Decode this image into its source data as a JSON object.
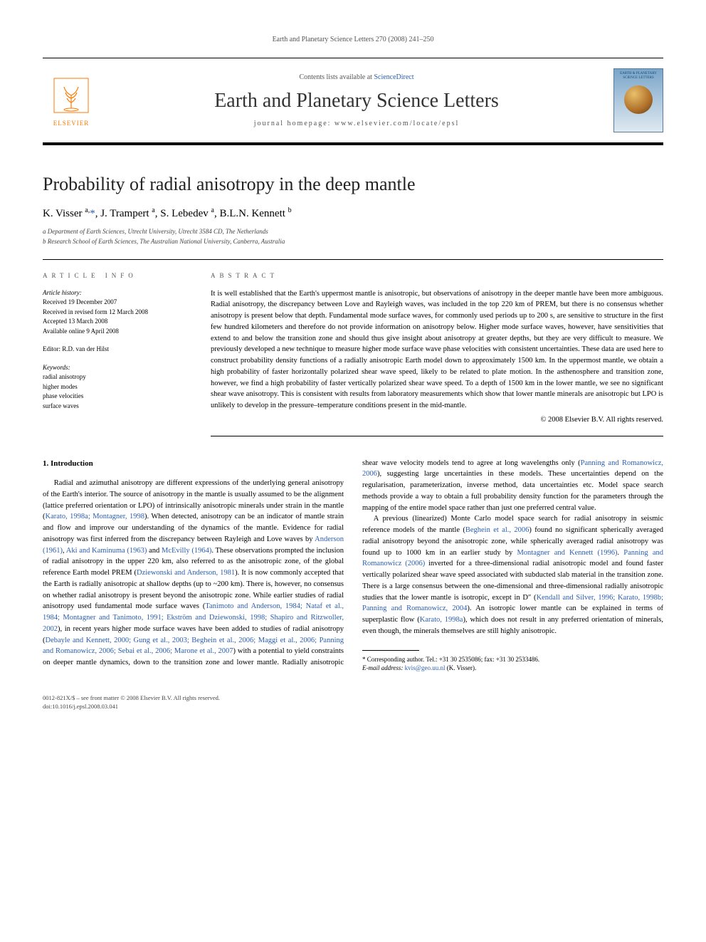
{
  "journal_ref": "Earth and Planetary Science Letters 270 (2008) 241–250",
  "header": {
    "contents_prefix": "Contents lists available at ",
    "contents_link": "ScienceDirect",
    "journal_title": "Earth and Planetary Science Letters",
    "homepage_label": "journal homepage: www.elsevier.com/locate/epsl",
    "publisher_name": "ELSEVIER",
    "cover_text": "EARTH & PLANETARY SCIENCE LETTERS"
  },
  "article": {
    "title": "Probability of radial anisotropy in the deep mantle",
    "authors_html": "K. Visser <sup>a,</sup><a href=\"#\">*</a>, J. Trampert <sup>a</sup>, S. Lebedev <sup>a</sup>, B.L.N. Kennett <sup>b</sup>",
    "affiliations": [
      "a  Department of Earth Sciences, Utrecht University, Utrecht 3584 CD, The Netherlands",
      "b  Research School of Earth Sciences, The Australian National University, Canberra, Australia"
    ]
  },
  "info": {
    "label": "ARTICLE INFO",
    "history_heading": "Article history:",
    "history": [
      "Received 19 December 2007",
      "Received in revised form 12 March 2008",
      "Accepted 13 March 2008",
      "Available online 9 April 2008"
    ],
    "editor": "Editor: R.D. van der Hilst",
    "keywords_heading": "Keywords:",
    "keywords": [
      "radial anisotropy",
      "higher modes",
      "phase velocities",
      "surface waves"
    ]
  },
  "abstract": {
    "label": "ABSTRACT",
    "text": "It is well established that the Earth's uppermost mantle is anisotropic, but observations of anisotropy in the deeper mantle have been more ambiguous. Radial anisotropy, the discrepancy between Love and Rayleigh waves, was included in the top 220 km of PREM, but there is no consensus whether anisotropy is present below that depth. Fundamental mode surface waves, for commonly used periods up to 200 s, are sensitive to structure in the first few hundred kilometers and therefore do not provide information on anisotropy below. Higher mode surface waves, however, have sensitivities that extend to and below the transition zone and should thus give insight about anisotropy at greater depths, but they are very difficult to measure. We previously developed a new technique to measure higher mode surface wave phase velocities with consistent uncertainties. These data are used here to construct probability density functions of a radially anisotropic Earth model down to approximately 1500 km. In the uppermost mantle, we obtain a high probability of faster horizontally polarized shear wave speed, likely to be related to plate motion. In the asthenosphere and transition zone, however, we find a high probability of faster vertically polarized shear wave speed. To a depth of 1500 km in the lower mantle, we see no significant shear wave anisotropy. This is consistent with results from laboratory measurements which show that lower mantle minerals are anisotropic but LPO is unlikely to develop in the pressure–temperature conditions present in the mid-mantle.",
    "copyright": "© 2008 Elsevier B.V. All rights reserved."
  },
  "body": {
    "heading": "1. Introduction",
    "p1_pre": "Radial and azimuthal anisotropy are different expressions of the underlying general anisotropy of the Earth's interior. The source of anisotropy in the mantle is usually assumed to be the alignment (lattice preferred orientation or LPO) of intrinsically anisotropic minerals under strain in the mantle (",
    "cite1": "Karato, 1998a; Montagner, 1998",
    "p1_mid1": "). When detected, anisotropy can be an indicator of mantle strain and flow and improve our understanding of the dynamics of the mantle. Evidence for radial anisotropy was first inferred from the discrepancy between Rayleigh and Love waves by ",
    "cite2": "Anderson (1961)",
    "p1_mid2": ", ",
    "cite3": "Aki and Kaminuma (1963)",
    "p1_mid3": " and ",
    "cite4": "McEvilly (1964)",
    "p1_mid4": ". These observations prompted the inclusion of radial anisotropy in the upper 220 km, also referred to as the anisotropic zone, of the global reference Earth model PREM (",
    "cite5": "Dziewonski and Anderson, 1981",
    "p1_mid5": "). It is now commonly accepted that the Earth is radially anisotropic at shallow depths (up to ~200 km). There is, however, no consensus on whether radial anisotropy is present beyond the anisotropic zone. While earlier studies of radial anisotropy used fundamental mode surface waves (",
    "cite6": "Tanimoto and Anderson, 1984; Nataf et al., 1984; Montagner and Tanimoto, 1991; Ekström and Dziewonski, 1998; Shapiro and Ritzwoller, 2002",
    "p1_mid6": "), in recent years higher mode surface waves have been added to studies of radial anisotropy (",
    "cite7": "Debayle and Kennett, 2000; Gung et al., 2003; Beghein et al., 2006; Maggi et al., 2006; Panning and Romanowicz, 2006; Sebai et al., 2006; Marone et al., 2007",
    "p1_mid7": ") with a potential to yield constraints on deeper mantle dynamics, down to the transition zone and lower mantle. Radially anisotropic shear wave velocity models tend to agree at long wavelengths only (",
    "cite8": "Panning and Romanowicz, 2006",
    "p1_end": "), suggesting large uncertainties in these models. These uncertainties depend on the regularisation, parameterization, inverse method, data uncertainties etc. Model space search methods provide a way to obtain a full probability density function for the parameters through the mapping of the entire model space rather than just one preferred central value.",
    "p2_pre": "A previous (linearized) Monte Carlo model space search for radial anisotropy in seismic reference models of the mantle (",
    "cite9": "Beghein et al., 2006",
    "p2_mid1": ") found no significant spherically averaged radial anisotropy beyond the anisotropic zone, while spherically averaged radial anisotropy was found up to 1000 km in an earlier study by ",
    "cite10": "Montagner and Kennett (1996)",
    "p2_mid2": ". ",
    "cite11": "Panning and Romanowicz (2006)",
    "p2_mid3": " inverted for a three-dimensional radial anisotropic model and found faster vertically polarized shear wave speed associated with subducted slab material in the transition zone. There is a large consensus between the one-dimensional and three-dimensional radially anisotropic studies that the lower mantle is isotropic, except in D″ (",
    "cite12": "Kendall and Silver, 1996; Karato, 1998b; Panning and Romanowicz, 2004",
    "p2_mid4": "). An isotropic lower mantle can be explained in terms of superplastic flow (",
    "cite13": "Karato, 1998a",
    "p2_end": "), which does not result in any preferred orientation of minerals, even though, the minerals themselves are still highly anisotropic."
  },
  "footnote": {
    "corr": "* Corresponding author. Tel.: +31 30 2535086; fax: +31 30 2533486.",
    "email_label": "E-mail address:",
    "email": "kvis@geo.uu.nl",
    "email_who": "(K. Visser)."
  },
  "footer": {
    "line1": "0012-821X/$ – see front matter © 2008 Elsevier B.V. All rights reserved.",
    "line2": "doi:10.1016/j.epsl.2008.03.041"
  },
  "colors": {
    "link": "#2a5db0",
    "publisher_orange": "#ff7a00",
    "text": "#000000",
    "muted": "#555555"
  }
}
